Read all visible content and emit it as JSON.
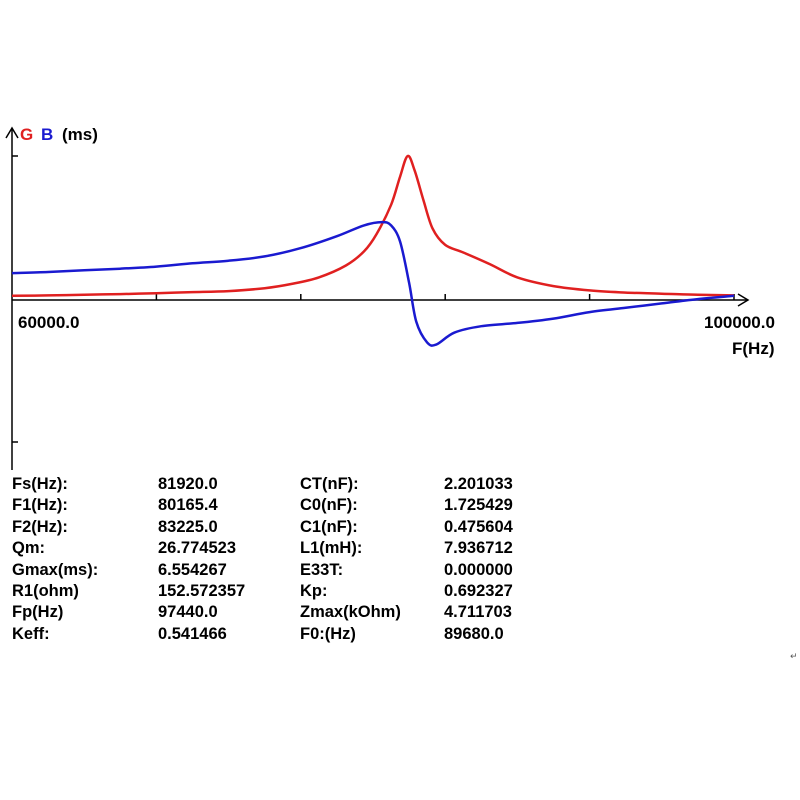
{
  "chart_data": {
    "type": "line",
    "y_label": {
      "g": "G",
      "b": "B",
      "unit": "(ms)"
    },
    "xlabel": "F(Hz)",
    "x_ticks_labels": [
      "60000.0",
      "100000.0"
    ],
    "xlim": [
      60000,
      100000
    ],
    "ylim_g": [
      0,
      6.55
    ],
    "grid": false,
    "legend": "none",
    "series": [
      {
        "name": "G",
        "color": "#e02020",
        "x": [
          60000,
          62000,
          64000,
          66000,
          68000,
          70000,
          72000,
          74000,
          75500,
          77000,
          78500,
          79500,
          80200,
          81000,
          81500,
          81920,
          82300,
          82800,
          83300,
          84000,
          85000,
          86500,
          88000,
          90000,
          92000,
          94000,
          96000,
          98000,
          100000
        ],
        "values": [
          0.1,
          0.12,
          0.15,
          0.18,
          0.22,
          0.27,
          0.32,
          0.45,
          0.65,
          0.95,
          1.5,
          2.15,
          2.95,
          4.3,
          5.6,
          6.55,
          5.9,
          4.5,
          3.2,
          2.45,
          2.1,
          1.55,
          0.95,
          0.55,
          0.35,
          0.25,
          0.2,
          0.15,
          0.12
        ]
      },
      {
        "name": "B",
        "color": "#1a1ad0",
        "x": [
          60000,
          62000,
          64000,
          66000,
          68000,
          70000,
          72000,
          74000,
          76000,
          78000,
          79500,
          80500,
          81000,
          81500,
          82000,
          82400,
          83000,
          83500,
          84500,
          86000,
          88000,
          90000,
          92000,
          94000,
          96000,
          98000,
          100000
        ],
        "values": [
          1.15,
          1.2,
          1.28,
          1.35,
          1.45,
          1.6,
          1.72,
          1.92,
          2.3,
          2.85,
          3.35,
          3.5,
          3.35,
          2.6,
          0.7,
          -1.1,
          -2.05,
          -2.15,
          -1.6,
          -1.3,
          -1.15,
          -0.95,
          -0.65,
          -0.45,
          -0.25,
          -0.05,
          0.1
        ]
      }
    ]
  },
  "params": [
    {
      "l1": "Fs(Hz):",
      "v1": "81920.0",
      "l2": "CT(nF):",
      "v2": "2.201033"
    },
    {
      "l1": "F1(Hz):",
      "v1": "80165.4",
      "l2": "C0(nF):",
      "v2": "1.725429"
    },
    {
      "l1": "F2(Hz):",
      "v1": "83225.0",
      "l2": "C1(nF):",
      "v2": "0.475604"
    },
    {
      "l1": "Qm:",
      "v1": "26.774523",
      "l2": "L1(mH):",
      "v2": "7.936712"
    },
    {
      "l1": "Gmax(ms):",
      "v1": "6.554267",
      "l2": "E33T:",
      "v2": "0.000000"
    },
    {
      "l1": "R1(ohm)",
      "v1": "152.572357",
      "l2": "Kp:",
      "v2": "0.692327"
    },
    {
      "l1": "Fp(Hz)",
      "v1": "97440.0",
      "l2": "Zmax(kOhm)",
      "v2": "4.711703"
    },
    {
      "l1": "Keff:",
      "v1": "0.541466",
      "l2": "F0:(Hz)",
      "v2": "89680.0"
    }
  ],
  "corner_mark": "↵"
}
